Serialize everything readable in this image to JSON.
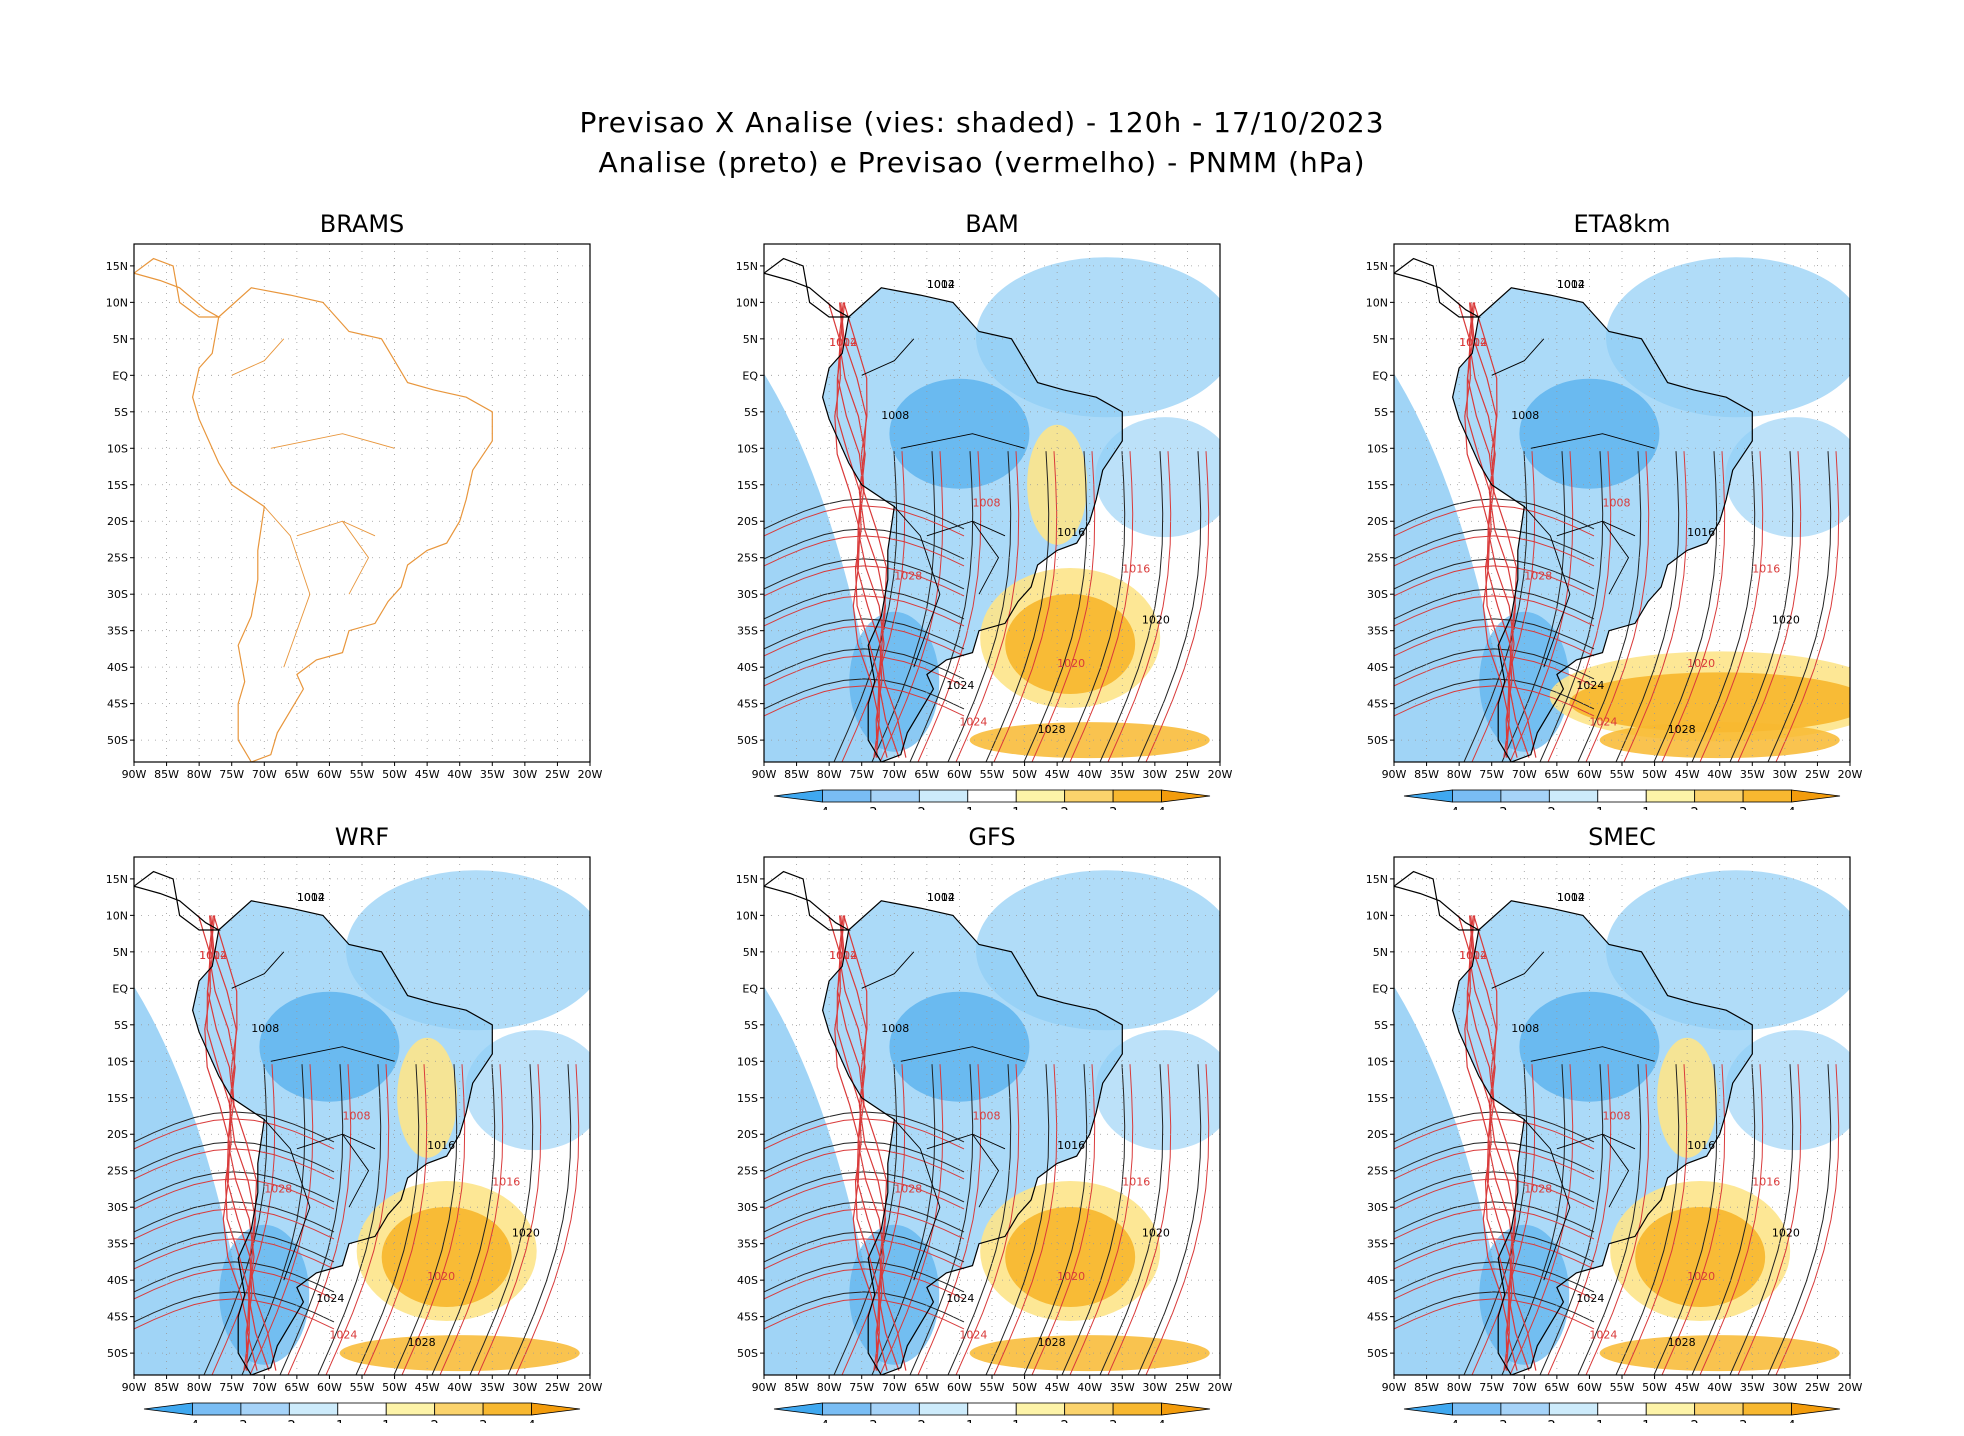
{
  "header": {
    "line1": "Previsao X Analise (vies: shaded) - 120h - 17/10/2023",
    "line2": "Analise (preto) e Previsao (vermelho) - PNMM (hPa)"
  },
  "latitude_labels": [
    "15N",
    "10N",
    "5N",
    "EQ",
    "5S",
    "10S",
    "15S",
    "20S",
    "25S",
    "30S",
    "35S",
    "40S",
    "45S",
    "50S"
  ],
  "longitude_labels": [
    "90W",
    "85W",
    "80W",
    "75W",
    "70W",
    "65W",
    "60W",
    "55W",
    "50W",
    "45W",
    "40W",
    "35W",
    "30W",
    "25W",
    "20W"
  ],
  "colorbar_labels": [
    "-4",
    "-3",
    "-2",
    "-1",
    "1",
    "2",
    "3",
    "4"
  ],
  "colorbar_colors": [
    "#3fa8f0",
    "#79bdf4",
    "#a6d3f8",
    "#cdebfb",
    "#ffffff",
    "#fdf3a8",
    "#fbd36c",
    "#f8b830",
    "#f39c0c"
  ],
  "colors": {
    "ocean_bias_blue": "#8fcdf5",
    "land_bias_blue": "#5ab2ee",
    "bias_orange": "#f8b830",
    "bias_yellow": "#fde48a",
    "forecast_isobar": "#d93a3a",
    "analysis_isobar": "#222222",
    "coastline_brams": "#e8963c"
  },
  "panels": [
    {
      "name": "BRAMS",
      "has_data": false,
      "has_colorbar": false,
      "isobar_labels": []
    },
    {
      "name": "BAM",
      "has_data": true,
      "has_colorbar": true,
      "isobar_labels": [
        "1012",
        "1008",
        "1016",
        "1020",
        "1024",
        "1028",
        "1004"
      ]
    },
    {
      "name": "ETA8km",
      "has_data": true,
      "has_colorbar": true,
      "isobar_labels": [
        "1012",
        "1008",
        "1016",
        "1020",
        "1024",
        "1028",
        "1004"
      ]
    },
    {
      "name": "WRF",
      "has_data": true,
      "has_colorbar": true,
      "isobar_labels": [
        "1012",
        "1008",
        "1016",
        "1020",
        "1024",
        "1028",
        "1004"
      ]
    },
    {
      "name": "GFS",
      "has_data": true,
      "has_colorbar": true,
      "isobar_labels": [
        "1012",
        "1008",
        "1016",
        "1020",
        "1024",
        "1028",
        "1004"
      ]
    },
    {
      "name": "SMEC",
      "has_data": true,
      "has_colorbar": true,
      "isobar_labels": [
        "1012",
        "1008",
        "1016",
        "1020",
        "1024",
        "1028",
        "1004"
      ]
    }
  ]
}
